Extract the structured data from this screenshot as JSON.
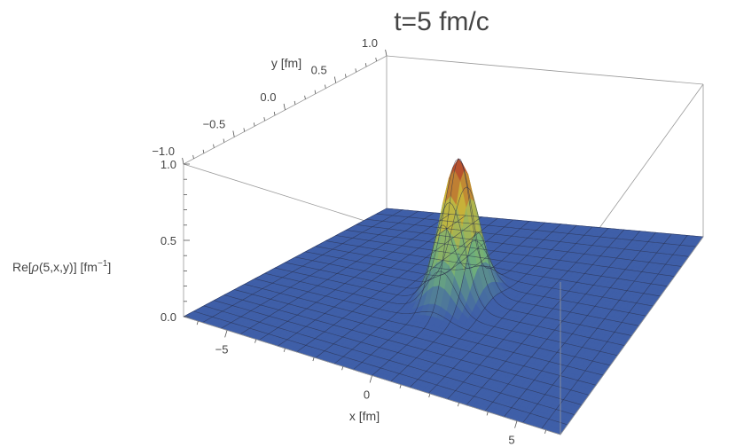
{
  "chart_data": {
    "type": "surface3d",
    "title": "t=5 fm/c",
    "xlabel": "x [fm]",
    "ylabel": "y [fm]",
    "zlabel_prefix": "Re[",
    "zlabel_rho": "ρ",
    "zlabel_args": "(5,x,y)] [fm",
    "zlabel_sup": "−1",
    "zlabel_close": "]",
    "xlim": [
      -6.5,
      6.5
    ],
    "ylim": [
      -1.0,
      1.0
    ],
    "zlim": [
      0.0,
      1.0
    ],
    "x_ticks": [
      {
        "value": -5,
        "label": "−5"
      },
      {
        "value": 0,
        "label": "0"
      },
      {
        "value": 5,
        "label": "5"
      }
    ],
    "y_ticks": [
      {
        "value": -1.0,
        "label": "−1.0"
      },
      {
        "value": -0.5,
        "label": "−0.5"
      },
      {
        "value": 0.0,
        "label": "0.0"
      },
      {
        "value": 0.5,
        "label": "0.5"
      },
      {
        "value": 1.0,
        "label": "1.0"
      }
    ],
    "z_ticks": [
      {
        "value": 0.0,
        "label": "0.0"
      },
      {
        "value": 0.5,
        "label": "0.5"
      },
      {
        "value": 1.0,
        "label": "1.0"
      }
    ],
    "surface": {
      "description_function": "narrow peak centered near x=0, y=0",
      "peak_x": 0.0,
      "peak_y": 0.0,
      "peak_value": 0.92,
      "width_x": 0.55,
      "width_y": 0.13,
      "grid_x": 20,
      "grid_y": 20
    },
    "grid": true,
    "colors": {
      "base": "#3f5fa8",
      "mesh": "#2a2f4a",
      "peak_high": "#b3352a",
      "peak_mid": "#c9b73a",
      "peak_low": "#6fb07a",
      "box": "#9a9a9a",
      "title": "#555555",
      "label": "#444444"
    }
  }
}
